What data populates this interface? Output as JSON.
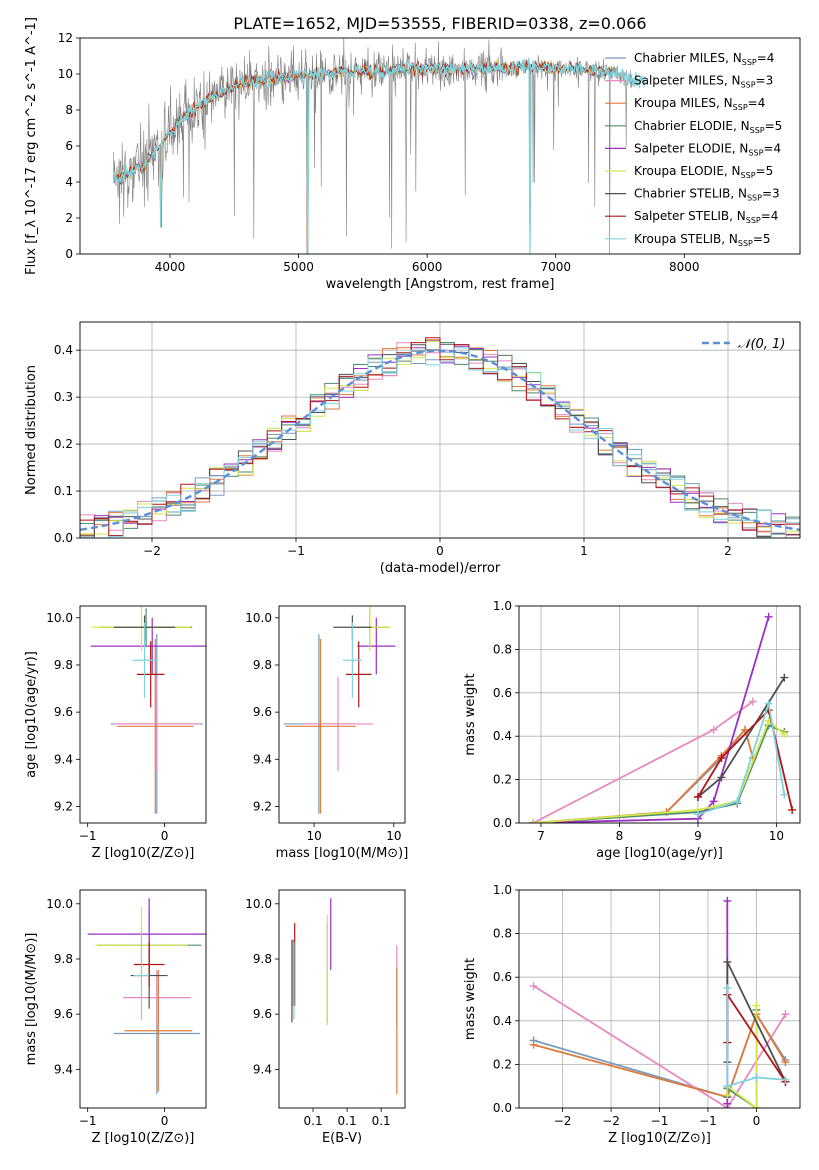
{
  "figure": {
    "title": "PLATE=1652, MJD=53555, FIBERID=0338, z=0.066"
  },
  "series_legend": [
    {
      "name": "Chabrier MILES, N$_{SSP}$=4",
      "lib": "Chabrier MILES",
      "n": "4",
      "color": "#7a9bc0"
    },
    {
      "name": "Salpeter MILES, N$_{SSP}$=3",
      "lib": "Salpeter MILES",
      "n": "3",
      "color": "#e889c0"
    },
    {
      "name": "Kroupa MILES, N$_{SSP}$=4",
      "lib": "Kroupa MILES",
      "n": "4",
      "color": "#e07b39"
    },
    {
      "name": "Chabrier ELODIE, N$_{SSP}$=5",
      "lib": "Chabrier ELODIE",
      "n": "5",
      "color": "#4f8b6f"
    },
    {
      "name": "Salpeter ELODIE, N$_{SSP}$=4",
      "lib": "Salpeter ELODIE",
      "n": "4",
      "color": "#9b30c0"
    },
    {
      "name": "Kroupa ELODIE, N$_{SSP}$=5",
      "lib": "Kroupa ELODIE",
      "n": "5",
      "color": "#d4e84a"
    },
    {
      "name": "Chabrier STELIB, N$_{SSP}$=3",
      "lib": "Chabrier STELIB",
      "n": "3",
      "color": "#505050"
    },
    {
      "name": "Salpeter STELIB, N$_{SSP}$=4",
      "lib": "Salpeter STELIB",
      "n": "4",
      "color": "#b01515"
    },
    {
      "name": "Kroupa STELIB, N$_{SSP}$=5",
      "lib": "Kroupa STELIB",
      "n": "5",
      "color": "#7fd4dc"
    }
  ],
  "chart_data": [
    {
      "type": "line",
      "panel": "spectrum",
      "xlabel": "wavelength [Angstrom, rest frame]",
      "ylabel": "Flux [f_λ 10^-17 erg cm^-2 s^-1 A^-1]",
      "xlim": [
        3300,
        8900
      ],
      "ylim": [
        0,
        12
      ],
      "xticks": [
        4000,
        5000,
        6000,
        7000,
        8000
      ],
      "yticks": [
        0,
        2,
        4,
        6,
        8,
        10,
        12
      ],
      "grid": false,
      "legend": "right",
      "data_color": "#808080",
      "model_color": "#7fd4dc",
      "continuum": {
        "x": [
          3600,
          3800,
          3950,
          4100,
          4300,
          4500,
          4800,
          5000,
          5300,
          5600,
          6000,
          6400,
          6800,
          7200,
          7500,
          7600,
          7900,
          8200,
          8500,
          8800
        ],
        "y": [
          4.2,
          5.0,
          6.3,
          7.6,
          8.5,
          9.4,
          9.8,
          9.9,
          10.1,
          10.2,
          10.3,
          10.3,
          10.4,
          10.3,
          10.0,
          9.6,
          9.8,
          9.6,
          9.5,
          9.4
        ]
      },
      "absorption_lines": [
        {
          "x": 3930,
          "y": 1.5
        },
        {
          "x": 5070,
          "y": 0.0
        },
        {
          "x": 6800,
          "y": 0.0
        },
        {
          "x": 7420,
          "y": 0.0
        }
      ]
    },
    {
      "type": "line",
      "panel": "residuals",
      "xlabel": "(data-model)/error",
      "ylabel": "Normed distribution",
      "xlim": [
        -2.5,
        2.5
      ],
      "ylim": [
        0,
        0.46
      ],
      "xticks": [
        -2,
        -1,
        0,
        1,
        2
      ],
      "yticks": [
        0.0,
        0.1,
        0.2,
        0.3,
        0.4
      ],
      "grid": true,
      "legend": "top-right",
      "reference": {
        "name": "𝒩(0, 1)",
        "color": "#5b8fd8"
      },
      "bin_width": 0.1
    },
    {
      "type": "scatter",
      "panel": "age-vs-Z",
      "xlabel": "Z [log10(Z/Z⊙)]",
      "ylabel": "age  [log10(age/yr)]",
      "xlim": [
        -0.55,
        0.27
      ],
      "ylim": [
        9.13,
        10.05
      ],
      "xticks": [
        -0.5,
        0.0
      ],
      "yticks": [
        9.2,
        9.4,
        9.6,
        9.8,
        10.0
      ],
      "points": [
        {
          "x": -0.05,
          "y": 9.55,
          "xerr": 0.3,
          "yerr": 0.38,
          "color": "#7a9bc0"
        },
        {
          "x": -0.05,
          "y": 9.55,
          "xerr": 0.28,
          "yerr": 0.2,
          "color": "#e889c0"
        },
        {
          "x": -0.06,
          "y": 9.54,
          "xerr": 0.25,
          "yerr": 0.37,
          "color": "#e07b39"
        },
        {
          "x": -0.12,
          "y": 9.96,
          "xerr": 0.3,
          "yerr": 0.08,
          "color": "#4f8b6f"
        },
        {
          "x": -0.08,
          "y": 9.88,
          "xerr": 0.4,
          "yerr": 0.12,
          "color": "#9b30c0"
        },
        {
          "x": -0.15,
          "y": 9.96,
          "xerr": 0.32,
          "yerr": 0.1,
          "color": "#d4e84a"
        },
        {
          "x": -0.13,
          "y": 9.96,
          "xerr": 0.2,
          "yerr": 0.05,
          "color": "#505050"
        },
        {
          "x": -0.09,
          "y": 9.76,
          "xerr": 0.09,
          "yerr": 0.14,
          "color": "#b01515"
        },
        {
          "x": -0.13,
          "y": 9.82,
          "xerr": 0.08,
          "yerr": 0.16,
          "color": "#7fd4dc"
        }
      ]
    },
    {
      "type": "scatter",
      "panel": "age-vs-mass",
      "xlabel": "mass [log10(M/M⊙)]",
      "ylabel": "",
      "xlim": [
        9.28,
        10.07
      ],
      "ylim": [
        9.13,
        10.05
      ],
      "xticks": [
        9.5,
        10.0
      ],
      "yticks": [
        9.2,
        9.4,
        9.6,
        9.8,
        10.0
      ],
      "points": [
        {
          "x": 9.53,
          "y": 9.55,
          "xerr": 0.22,
          "yerr": 0.38,
          "color": "#7a9bc0"
        },
        {
          "x": 9.65,
          "y": 9.55,
          "xerr": 0.22,
          "yerr": 0.2,
          "color": "#e889c0"
        },
        {
          "x": 9.54,
          "y": 9.54,
          "xerr": 0.22,
          "yerr": 0.37,
          "color": "#e07b39"
        },
        {
          "x": 9.85,
          "y": 9.96,
          "xerr": 0.12,
          "yerr": 0.08,
          "color": "#4f8b6f"
        },
        {
          "x": 9.89,
          "y": 9.88,
          "xerr": 0.12,
          "yerr": 0.12,
          "color": "#9b30c0"
        },
        {
          "x": 9.85,
          "y": 9.96,
          "xerr": 0.13,
          "yerr": 0.1,
          "color": "#d4e84a"
        },
        {
          "x": 9.74,
          "y": 9.96,
          "xerr": 0.12,
          "yerr": 0.05,
          "color": "#505050"
        },
        {
          "x": 9.78,
          "y": 9.76,
          "xerr": 0.08,
          "yerr": 0.14,
          "color": "#b01515"
        },
        {
          "x": 9.74,
          "y": 9.82,
          "xerr": 0.06,
          "yerr": 0.16,
          "color": "#7fd4dc"
        }
      ]
    },
    {
      "type": "line",
      "panel": "mass-weight-vs-age",
      "xlabel": "age  [log10(age/yr)]",
      "ylabel": "mass weight",
      "xlim": [
        6.72,
        10.3
      ],
      "ylim": [
        0,
        1
      ],
      "xticks": [
        7,
        8,
        9,
        10
      ],
      "yticks": [
        0.0,
        0.2,
        0.4,
        0.6,
        0.8,
        1.0
      ],
      "grid": true,
      "series": [
        {
          "color": "#7a9bc0",
          "x": [
            6.9,
            8.6,
            9.3,
            9.6
          ],
          "y": [
            0.0,
            0.05,
            0.3,
            0.43
          ]
        },
        {
          "color": "#e889c0",
          "x": [
            6.9,
            9.2,
            9.7
          ],
          "y": [
            0.0,
            0.43,
            0.56
          ]
        },
        {
          "color": "#e07b39",
          "x": [
            6.9,
            8.6,
            9.3,
            9.6,
            9.7
          ],
          "y": [
            0.0,
            0.05,
            0.31,
            0.43,
            0.3
          ]
        },
        {
          "color": "#4f8b6f",
          "x": [
            6.9,
            9.0,
            9.5,
            9.9,
            10.1
          ],
          "y": [
            0.0,
            0.05,
            0.09,
            0.45,
            0.42
          ]
        },
        {
          "color": "#9b30c0",
          "x": [
            6.9,
            9.0,
            9.2,
            9.9
          ],
          "y": [
            0.0,
            0.02,
            0.1,
            0.95
          ]
        },
        {
          "color": "#d4e84a",
          "x": [
            6.9,
            9.0,
            9.5,
            9.9,
            10.1
          ],
          "y": [
            0.0,
            0.06,
            0.1,
            0.47,
            0.41
          ]
        },
        {
          "color": "#505050",
          "x": [
            9.0,
            9.3,
            10.1
          ],
          "y": [
            0.12,
            0.21,
            0.67
          ]
        },
        {
          "color": "#b01515",
          "x": [
            9.0,
            9.3,
            9.9,
            10.2
          ],
          "y": [
            0.12,
            0.3,
            0.52,
            0.06
          ]
        },
        {
          "color": "#7fd4dc",
          "x": [
            9.0,
            9.5,
            9.9,
            10.1
          ],
          "y": [
            0.04,
            0.1,
            0.55,
            0.13
          ]
        }
      ]
    },
    {
      "type": "scatter",
      "panel": "mass-vs-Z",
      "xlabel": "Z [log10(Z/Z⊙)]",
      "ylabel": "mass [log10(M/M⊙)]",
      "xlim": [
        -0.55,
        0.27
      ],
      "ylim": [
        9.26,
        10.05
      ],
      "xticks": [
        -0.5,
        0.0
      ],
      "yticks": [
        9.4,
        9.6,
        9.8,
        10.0
      ],
      "points": [
        {
          "x": -0.05,
          "y": 9.53,
          "xerr": 0.28,
          "yerr": 0.22,
          "color": "#7a9bc0"
        },
        {
          "x": -0.05,
          "y": 9.66,
          "xerr": 0.22,
          "yerr": 0.1,
          "color": "#e889c0"
        },
        {
          "x": -0.04,
          "y": 9.54,
          "xerr": 0.22,
          "yerr": 0.22,
          "color": "#e07b39"
        },
        {
          "x": -0.1,
          "y": 9.85,
          "xerr": 0.34,
          "yerr": 0.13,
          "color": "#4f8b6f"
        },
        {
          "x": -0.1,
          "y": 9.89,
          "xerr": 0.4,
          "yerr": 0.13,
          "color": "#9b30c0"
        },
        {
          "x": -0.15,
          "y": 9.85,
          "xerr": 0.3,
          "yerr": 0.14,
          "color": "#d4e84a"
        },
        {
          "x": -0.1,
          "y": 9.74,
          "xerr": 0.12,
          "yerr": 0.12,
          "color": "#505050"
        },
        {
          "x": -0.1,
          "y": 9.78,
          "xerr": 0.1,
          "yerr": 0.08,
          "color": "#b01515"
        },
        {
          "x": -0.15,
          "y": 9.74,
          "xerr": 0.05,
          "yerr": 0.16,
          "color": "#7fd4dc"
        }
      ]
    },
    {
      "type": "scatter",
      "panel": "mass-vs-EBV",
      "xlabel": "E(B-V)",
      "ylabel": "",
      "xlim": [
        0.0,
        0.185
      ],
      "ylim": [
        9.26,
        10.05
      ],
      "xticks": [
        0.05,
        0.1,
        0.15
      ],
      "yticks": [
        9.4,
        9.6,
        9.8,
        10.0
      ],
      "points": [
        {
          "x": 0.021,
          "y": 9.75,
          "yerr": 0.12,
          "color": "#7a9bc0"
        },
        {
          "x": 0.173,
          "y": 9.7,
          "yerr": 0.15,
          "color": "#e889c0"
        },
        {
          "x": 0.173,
          "y": 9.54,
          "yerr": 0.23,
          "color": "#e07b39"
        },
        {
          "x": 0.071,
          "y": 9.75,
          "yerr": 0.18,
          "color": "#4f8b6f"
        },
        {
          "x": 0.076,
          "y": 9.89,
          "yerr": 0.13,
          "color": "#9b30c0"
        },
        {
          "x": 0.071,
          "y": 9.76,
          "yerr": 0.2,
          "color": "#d4e84a"
        },
        {
          "x": 0.019,
          "y": 9.72,
          "yerr": 0.15,
          "color": "#505050"
        },
        {
          "x": 0.023,
          "y": 9.78,
          "yerr": 0.15,
          "color": "#b01515"
        },
        {
          "x": 0.022,
          "y": 9.72,
          "yerr": 0.14,
          "color": "#7fd4dc"
        }
      ]
    },
    {
      "type": "line",
      "panel": "mass-weight-vs-Z",
      "xlabel": "Z [log10(Z/Z⊙)]",
      "ylabel": "mass weight",
      "xlim": [
        -2.45,
        0.45
      ],
      "ylim": [
        0,
        1
      ],
      "xticks": [
        -2.0,
        -1.5,
        -1.0,
        -0.5,
        0.0
      ],
      "yticks": [
        0.0,
        0.2,
        0.4,
        0.6,
        0.8,
        1.0
      ],
      "grid": true,
      "series": [
        {
          "color": "#7a9bc0",
          "x": [
            -2.3,
            -0.3,
            0.0,
            0.3
          ],
          "y": [
            0.31,
            0.05,
            0.43,
            0.22
          ]
        },
        {
          "color": "#e889c0",
          "x": [
            -2.3,
            -0.3,
            0.3
          ],
          "y": [
            0.56,
            0.0,
            0.43
          ]
        },
        {
          "color": "#e07b39",
          "x": [
            -2.3,
            -0.3,
            0.0,
            0.3
          ],
          "y": [
            0.29,
            0.05,
            0.43,
            0.21
          ]
        },
        {
          "color": "#4f8b6f",
          "x": [
            -0.3,
            -0.3,
            0.0,
            0.0
          ],
          "y": [
            0.05,
            0.09,
            0.0,
            0.45
          ]
        },
        {
          "color": "#9b30c0",
          "x": [
            -0.3,
            -0.3,
            -0.3
          ],
          "y": [
            0.02,
            0.1,
            0.95
          ]
        },
        {
          "color": "#d4e84a",
          "x": [
            -0.3,
            -0.3,
            0.0,
            0.0
          ],
          "y": [
            0.06,
            0.1,
            0.0,
            0.47
          ]
        },
        {
          "color": "#505050",
          "x": [
            -0.3,
            -0.3,
            0.3
          ],
          "y": [
            0.21,
            0.67,
            0.12
          ]
        },
        {
          "color": "#b01515",
          "x": [
            -0.3,
            -0.3,
            0.3
          ],
          "y": [
            0.3,
            0.52,
            0.12
          ]
        },
        {
          "color": "#7fd4dc",
          "x": [
            -0.3,
            -0.3,
            0.0,
            0.3
          ],
          "y": [
            0.55,
            0.1,
            0.14,
            0.13
          ]
        }
      ]
    }
  ]
}
